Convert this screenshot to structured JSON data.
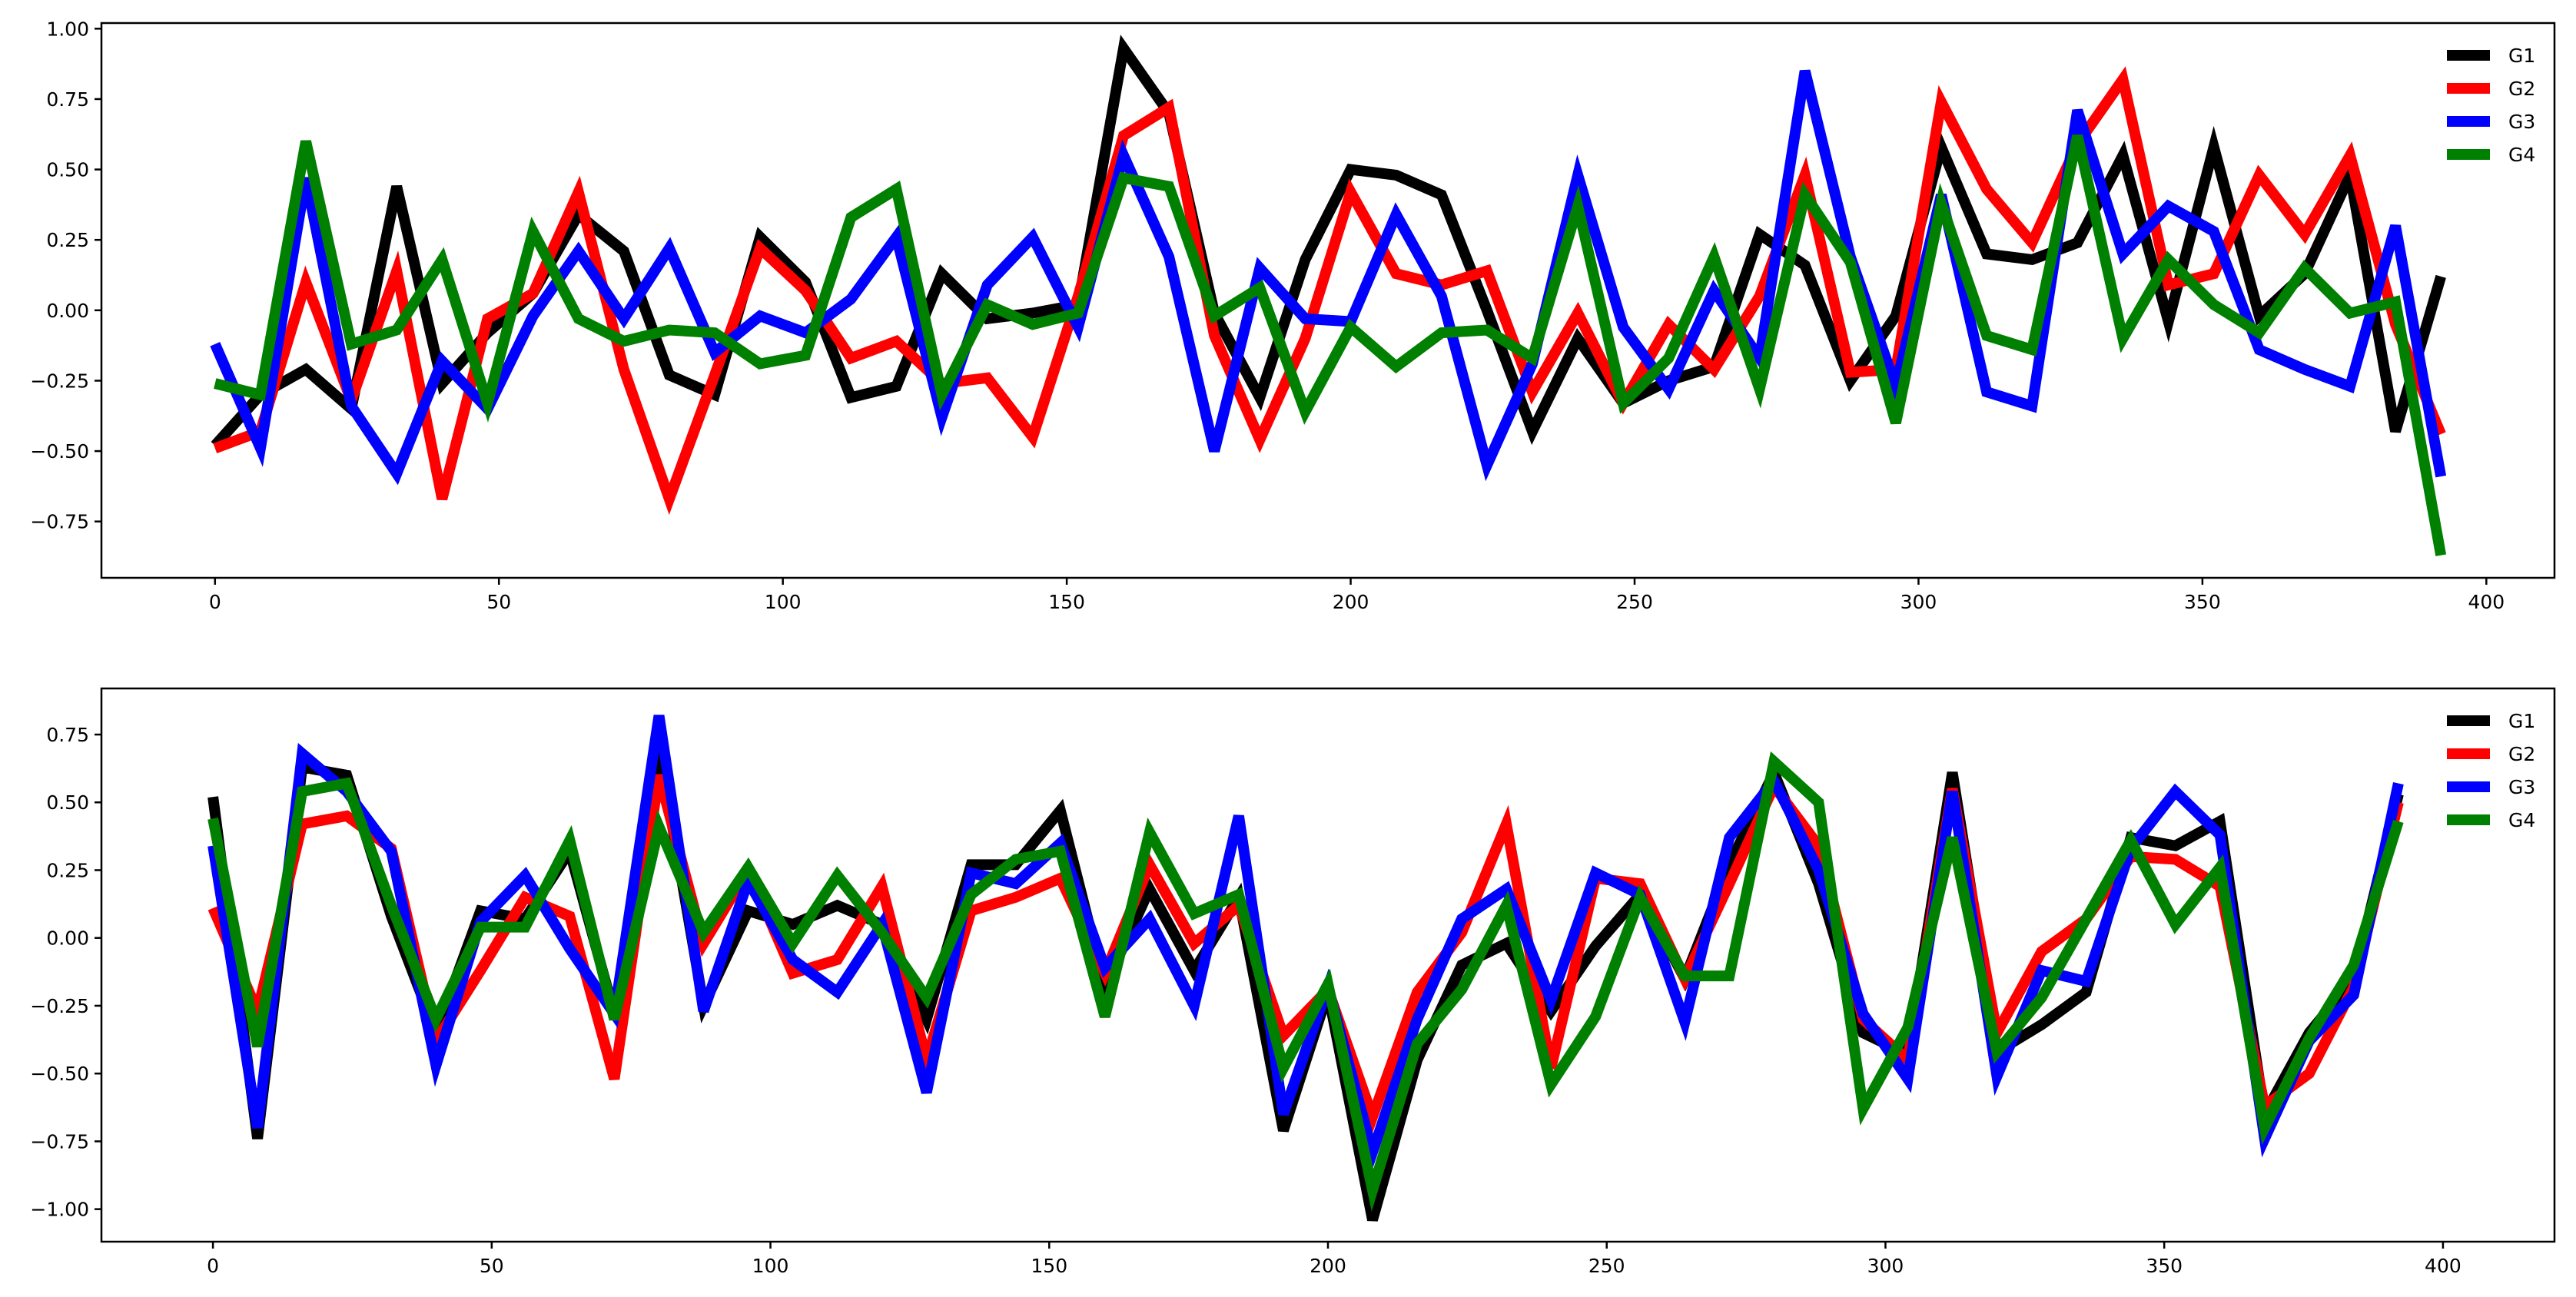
{
  "chart_data": [
    {
      "type": "line",
      "ylim": [
        -0.95,
        1.02
      ],
      "xlim": [
        -20,
        412
      ],
      "yticks": [
        -0.75,
        -0.5,
        -0.25,
        0.0,
        0.25,
        0.5,
        0.75,
        1.0
      ],
      "ytick_labels": [
        "−0.75",
        "−0.50",
        "−0.25",
        "0.00",
        "0.25",
        "0.50",
        "0.75",
        "1.00"
      ],
      "xticks": [
        0,
        50,
        100,
        150,
        200,
        250,
        300,
        350,
        400
      ],
      "xtick_labels": [
        "0",
        "50",
        "100",
        "150",
        "200",
        "250",
        "300",
        "350",
        "400"
      ],
      "grid": false,
      "legend_position": "top-right",
      "x": [
        0,
        8,
        16,
        24,
        32,
        40,
        48,
        56,
        64,
        72,
        80,
        88,
        96,
        104,
        112,
        120,
        128,
        136,
        144,
        152,
        160,
        168,
        176,
        184,
        192,
        200,
        208,
        216,
        224,
        232,
        240,
        248,
        256,
        264,
        272,
        280,
        288,
        296,
        304,
        312,
        320,
        328,
        336,
        344,
        352,
        360,
        368,
        376,
        384,
        392
      ],
      "series": [
        {
          "name": "G1",
          "color": "#000000",
          "values": [
            -0.48,
            -0.3,
            -0.21,
            -0.35,
            0.44,
            -0.26,
            -0.08,
            0.06,
            0.34,
            0.21,
            -0.23,
            -0.3,
            0.26,
            0.1,
            -0.31,
            -0.27,
            0.13,
            -0.03,
            -0.01,
            0.02,
            0.93,
            0.7,
            -0.01,
            -0.31,
            0.18,
            0.5,
            0.48,
            0.41,
            0.0,
            -0.43,
            -0.1,
            -0.33,
            -0.25,
            -0.2,
            0.27,
            0.16,
            -0.25,
            -0.02,
            0.58,
            0.2,
            0.18,
            0.24,
            0.55,
            -0.04,
            0.58,
            -0.02,
            0.13,
            0.48,
            -0.43,
            0.12
          ]
        },
        {
          "name": "G2",
          "color": "#ff0000",
          "values": [
            -0.49,
            -0.43,
            0.1,
            -0.32,
            0.14,
            -0.67,
            -0.03,
            0.06,
            0.42,
            -0.21,
            -0.67,
            -0.23,
            0.22,
            0.07,
            -0.17,
            -0.11,
            -0.26,
            -0.24,
            -0.45,
            0.05,
            0.62,
            0.72,
            -0.09,
            -0.46,
            -0.1,
            0.42,
            0.13,
            0.09,
            0.14,
            -0.29,
            -0.01,
            -0.33,
            -0.05,
            -0.21,
            0.05,
            0.48,
            -0.22,
            -0.21,
            0.74,
            0.43,
            0.24,
            0.59,
            0.82,
            0.09,
            0.13,
            0.48,
            0.27,
            0.55,
            -0.05,
            -0.44
          ]
        },
        {
          "name": "G3",
          "color": "#0000ff",
          "values": [
            -0.12,
            -0.49,
            0.47,
            -0.34,
            -0.58,
            -0.18,
            -0.35,
            -0.02,
            0.21,
            -0.03,
            0.22,
            -0.15,
            -0.02,
            -0.08,
            0.04,
            0.26,
            -0.38,
            0.09,
            0.26,
            -0.06,
            0.55,
            0.19,
            -0.5,
            0.15,
            -0.03,
            -0.04,
            0.34,
            0.05,
            -0.55,
            -0.19,
            0.48,
            -0.06,
            -0.28,
            0.07,
            -0.17,
            0.85,
            0.19,
            -0.27,
            0.41,
            -0.29,
            -0.34,
            0.71,
            0.2,
            0.37,
            0.28,
            -0.14,
            -0.21,
            -0.27,
            0.3,
            -0.59
          ]
        },
        {
          "name": "G4",
          "color": "#008000",
          "values": [
            -0.26,
            -0.3,
            0.6,
            -0.12,
            -0.07,
            0.18,
            -0.33,
            0.28,
            -0.03,
            -0.11,
            -0.07,
            -0.08,
            -0.19,
            -0.16,
            0.33,
            0.43,
            -0.3,
            0.02,
            -0.05,
            -0.01,
            0.47,
            0.44,
            -0.02,
            0.08,
            -0.36,
            -0.06,
            -0.2,
            -0.08,
            -0.07,
            -0.17,
            0.37,
            -0.33,
            -0.17,
            0.19,
            -0.28,
            0.41,
            0.17,
            -0.4,
            0.38,
            -0.09,
            -0.14,
            0.62,
            -0.1,
            0.18,
            0.02,
            -0.08,
            0.15,
            -0.01,
            0.03,
            -0.87
          ]
        }
      ]
    },
    {
      "type": "line",
      "ylim": [
        -1.12,
        0.92
      ],
      "xlim": [
        -20,
        420
      ],
      "yticks": [
        -1.0,
        -0.75,
        -0.5,
        -0.25,
        0.0,
        0.25,
        0.5,
        0.75
      ],
      "ytick_labels": [
        "−1.00",
        "−0.75",
        "−0.50",
        "−0.25",
        "0.00",
        "0.25",
        "0.50",
        "0.75"
      ],
      "xticks": [
        0,
        50,
        100,
        150,
        200,
        250,
        300,
        350,
        400
      ],
      "xtick_labels": [
        "0",
        "50",
        "100",
        "150",
        "200",
        "250",
        "300",
        "350",
        "400"
      ],
      "grid": false,
      "legend_position": "top-right",
      "x": [
        0,
        8,
        16,
        24,
        32,
        40,
        48,
        56,
        64,
        72,
        80,
        88,
        96,
        104,
        112,
        120,
        128,
        136,
        144,
        152,
        160,
        168,
        176,
        184,
        192,
        200,
        208,
        216,
        224,
        232,
        240,
        248,
        256,
        264,
        272,
        280,
        288,
        296,
        304,
        312,
        320,
        328,
        336,
        344,
        352,
        360,
        368,
        376,
        384,
        392
      ],
      "series": [
        {
          "name": "G1",
          "color": "#000000",
          "values": [
            0.52,
            -0.74,
            0.63,
            0.6,
            0.08,
            -0.35,
            0.1,
            0.07,
            0.32,
            -0.28,
            0.7,
            -0.25,
            0.1,
            0.05,
            0.12,
            0.05,
            -0.3,
            0.27,
            0.27,
            0.47,
            -0.18,
            0.18,
            -0.12,
            0.15,
            -0.71,
            -0.2,
            -1.04,
            -0.45,
            -0.1,
            -0.02,
            -0.27,
            -0.03,
            0.16,
            -0.15,
            0.27,
            0.61,
            0.2,
            -0.35,
            -0.43,
            0.61,
            -0.42,
            -0.32,
            -0.2,
            0.37,
            0.34,
            0.43,
            -0.65,
            -0.35,
            -0.15,
            0.53
          ]
        },
        {
          "name": "G2",
          "color": "#ff0000",
          "values": [
            0.11,
            -0.27,
            0.42,
            0.45,
            0.33,
            -0.38,
            -0.12,
            0.15,
            0.08,
            -0.52,
            0.6,
            -0.02,
            0.25,
            -0.13,
            -0.08,
            0.19,
            -0.45,
            0.1,
            0.15,
            0.22,
            -0.13,
            0.27,
            -0.02,
            0.12,
            -0.36,
            -0.19,
            -0.66,
            -0.2,
            0.02,
            0.42,
            -0.48,
            0.22,
            0.2,
            -0.15,
            0.2,
            0.56,
            0.34,
            -0.3,
            -0.45,
            0.55,
            -0.35,
            -0.05,
            0.07,
            0.3,
            0.29,
            0.19,
            -0.62,
            -0.5,
            -0.18,
            0.5
          ]
        },
        {
          "name": "G3",
          "color": "#0000ff",
          "values": [
            0.34,
            -0.7,
            0.68,
            0.54,
            0.32,
            -0.47,
            0.06,
            0.23,
            -0.04,
            -0.28,
            0.82,
            -0.27,
            0.21,
            -0.08,
            -0.2,
            0.05,
            -0.57,
            0.24,
            0.2,
            0.35,
            -0.11,
            0.07,
            -0.25,
            0.45,
            -0.65,
            -0.18,
            -0.79,
            -0.3,
            0.07,
            0.18,
            -0.23,
            0.24,
            0.16,
            -0.31,
            0.37,
            0.58,
            0.25,
            -0.28,
            -0.52,
            0.54,
            -0.51,
            -0.12,
            -0.16,
            0.33,
            0.54,
            0.38,
            -0.74,
            -0.38,
            -0.21,
            0.57
          ]
        },
        {
          "name": "G4",
          "color": "#008000",
          "values": [
            0.44,
            -0.4,
            0.54,
            0.57,
            0.12,
            -0.3,
            0.04,
            0.04,
            0.36,
            -0.3,
            0.41,
            0.02,
            0.26,
            -0.02,
            0.23,
            0.02,
            -0.22,
            0.16,
            0.29,
            0.32,
            -0.29,
            0.39,
            0.09,
            0.16,
            -0.48,
            -0.17,
            -0.93,
            -0.39,
            -0.19,
            0.12,
            -0.54,
            -0.29,
            0.15,
            -0.14,
            -0.14,
            0.65,
            0.5,
            -0.63,
            -0.33,
            0.37,
            -0.42,
            -0.22,
            0.07,
            0.36,
            0.05,
            0.26,
            -0.7,
            -0.37,
            -0.1,
            0.43
          ]
        }
      ]
    }
  ]
}
